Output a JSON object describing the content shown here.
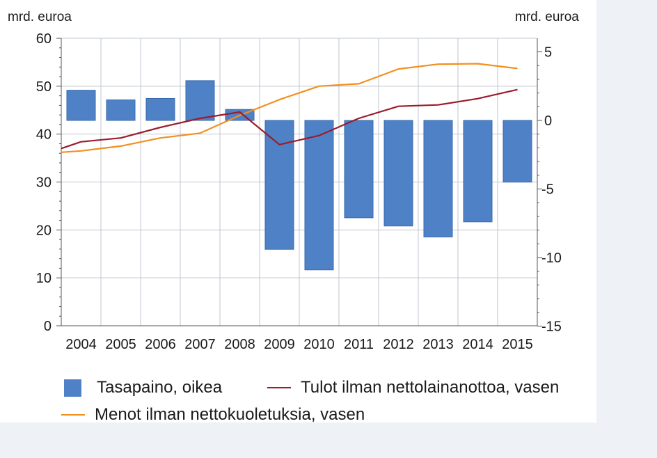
{
  "units": {
    "left": "mrd. euroa",
    "right": "mrd. euroa"
  },
  "colors": {
    "bar": "#4f81c7",
    "bar_edge": "#3a6aad",
    "revenue": "#9b1c2c",
    "expenditure": "#f2901e",
    "grid": "#bfc4cc",
    "axis": "#555555"
  },
  "legend": {
    "balance": "Tasapaino, oikea",
    "revenue": "Tulot ilman nettolainanottoa, vasen",
    "expenditure": "Menot ilman nettokuoletuksia, vasen"
  },
  "chart_data": {
    "type": "bar",
    "categories": [
      "2004",
      "2005",
      "2006",
      "2007",
      "2008",
      "2009",
      "2010",
      "2011",
      "2012",
      "2013",
      "2014",
      "2015"
    ],
    "y_left": {
      "lim": [
        0,
        60
      ],
      "ticks": [
        0,
        10,
        20,
        30,
        40,
        50,
        60
      ],
      "label": "mrd. euroa"
    },
    "y_right": {
      "lim": [
        -15,
        6
      ],
      "ticks": [
        -15,
        -10,
        -5,
        0,
        5
      ],
      "label": "mrd. euroa"
    },
    "series": [
      {
        "name": "Tasapaino, oikea",
        "type": "bar",
        "axis": "right",
        "values": [
          2.2,
          1.5,
          1.6,
          2.9,
          0.8,
          -9.4,
          -10.9,
          -7.1,
          -7.7,
          -8.5,
          -7.4,
          -4.5
        ]
      },
      {
        "name": "Tulot ilman nettolainanottoa, vasen",
        "type": "line",
        "axis": "left",
        "x": [
          2003.5,
          2004,
          2005,
          2006,
          2007,
          2008,
          2009,
          2010,
          2011,
          2012,
          2013,
          2014,
          2015
        ],
        "values": [
          37.0,
          38.4,
          39.2,
          41.4,
          43.3,
          44.6,
          37.8,
          39.7,
          43.3,
          45.8,
          46.1,
          47.4,
          49.3
        ]
      },
      {
        "name": "Menot ilman nettokuoletuksia, vasen",
        "type": "line",
        "axis": "left",
        "x": [
          2003.5,
          2004,
          2005,
          2006,
          2007,
          2008,
          2009,
          2010,
          2011,
          2012,
          2013,
          2014,
          2015
        ],
        "values": [
          36.2,
          36.5,
          37.5,
          39.2,
          40.2,
          43.9,
          47.2,
          50.0,
          50.5,
          53.6,
          54.6,
          54.7,
          53.7
        ]
      }
    ],
    "grid": true,
    "legend_position": "bottom"
  }
}
